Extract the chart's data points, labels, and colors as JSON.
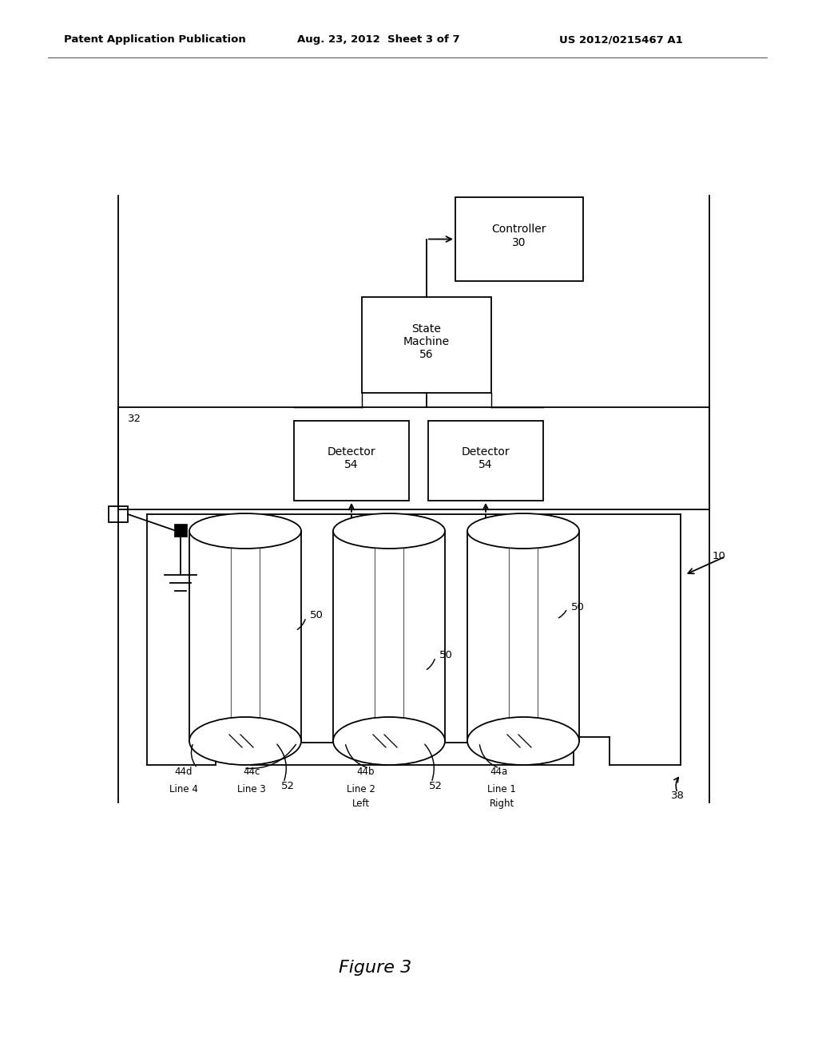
{
  "bg_color": "#ffffff",
  "header_left": "Patent Application Publication",
  "header_mid": "Aug. 23, 2012  Sheet 3 of 7",
  "header_right": "US 2012/0215467 A1",
  "figure_label": "Figure 3",
  "lw": 1.3
}
